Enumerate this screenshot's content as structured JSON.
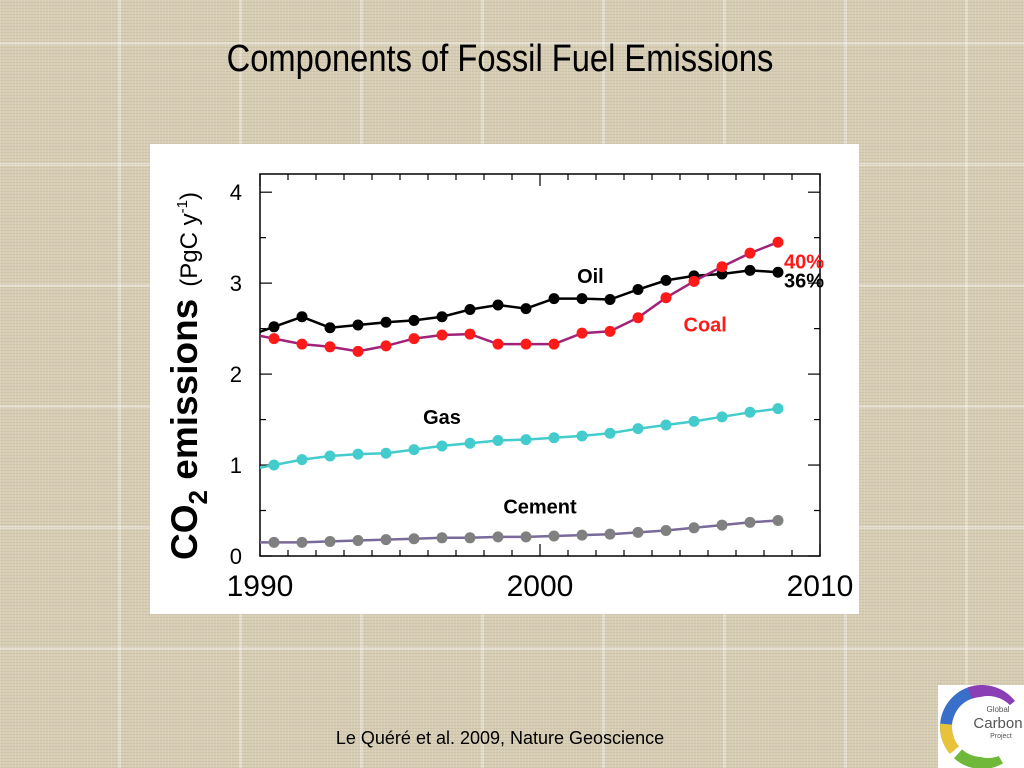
{
  "slide": {
    "title": "Components of Fossil Fuel Emissions",
    "citation": "Le Quéré et al. 2009, Nature Geoscience"
  },
  "logo": {
    "line1": "Global",
    "line2": "Carbon",
    "line3": "Project"
  },
  "chart_data": {
    "type": "line",
    "xlabel": "",
    "ylabel_main": "CO",
    "ylabel_sub": "2",
    "ylabel_rest": " emissions",
    "ylabel_units": "(PgC y",
    "ylabel_units_sup": "-1",
    "ylabel_units_close": ")",
    "xlim": [
      1990,
      2010
    ],
    "ylim": [
      0,
      4.2
    ],
    "x_ticks": [
      "1990",
      "2000",
      "2010"
    ],
    "y_ticks": [
      "0",
      "1",
      "2",
      "3",
      "4"
    ],
    "grid": false,
    "x": [
      1990.5,
      1991.5,
      1992.5,
      1993.5,
      1994.5,
      1995.5,
      1996.5,
      1997.5,
      1998.5,
      1999.5,
      2000.5,
      2001.5,
      2002.5,
      2003.5,
      2004.5,
      2005.5,
      2006.5,
      2007.5,
      2008.5
    ],
    "series": [
      {
        "name": "Oil",
        "color": "#000000",
        "line_color": "#000000",
        "values": [
          2.52,
          2.63,
          2.51,
          2.54,
          2.57,
          2.59,
          2.63,
          2.71,
          2.76,
          2.72,
          2.83,
          2.83,
          2.82,
          2.93,
          3.03,
          3.08,
          3.1,
          3.14,
          3.12
        ],
        "end_label": "36%",
        "end_label_color": "#000000"
      },
      {
        "name": "Coal",
        "color": "#ff1a1a",
        "line_color": "#a0237a",
        "values": [
          2.39,
          2.33,
          2.3,
          2.25,
          2.31,
          2.39,
          2.43,
          2.44,
          2.33,
          2.33,
          2.33,
          2.45,
          2.47,
          2.62,
          2.84,
          3.02,
          3.18,
          3.33,
          3.45
        ],
        "end_label": "40%",
        "end_label_color": "#ff1a1a"
      },
      {
        "name": "Gas",
        "color": "#44cccc",
        "line_color": "#44cccc",
        "values": [
          1.0,
          1.06,
          1.1,
          1.12,
          1.13,
          1.17,
          1.21,
          1.24,
          1.27,
          1.28,
          1.3,
          1.32,
          1.35,
          1.4,
          1.44,
          1.48,
          1.53,
          1.58,
          1.62
        ],
        "end_label": "",
        "end_label_color": "#000000"
      },
      {
        "name": "Cement",
        "color": "#808080",
        "line_color": "#7a6a9a",
        "values": [
          0.15,
          0.15,
          0.16,
          0.17,
          0.18,
          0.19,
          0.2,
          0.2,
          0.21,
          0.21,
          0.22,
          0.23,
          0.24,
          0.26,
          0.28,
          0.31,
          0.34,
          0.37,
          0.39
        ],
        "end_label": "",
        "end_label_color": "#000000"
      }
    ]
  }
}
